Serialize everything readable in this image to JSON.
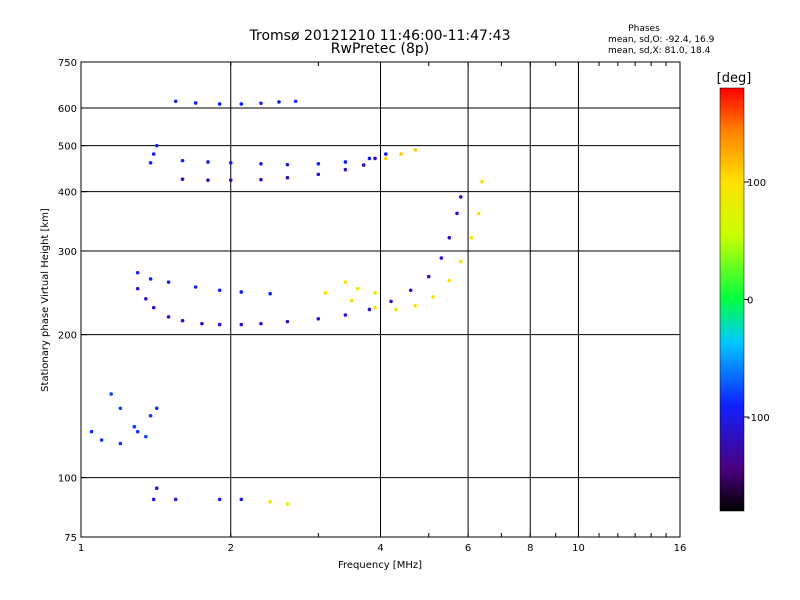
{
  "chart_data": {
    "type": "scatter",
    "title": "Tromsø 20121210 11:46:00-11:47:43",
    "subtitle": "RwPretec (8p)",
    "xlabel": "Frequency [MHz]",
    "ylabel": "Stationary phase Virtual Height [km]",
    "x_scale": "log",
    "y_scale": "log",
    "xlim": [
      1,
      16
    ],
    "ylim": [
      75,
      750
    ],
    "x_ticks": [
      1,
      2,
      4,
      6,
      8,
      10,
      16
    ],
    "y_ticks": [
      75,
      100,
      200,
      300,
      400,
      500,
      600,
      750
    ],
    "grid": true,
    "phases_box": {
      "title": "Phases",
      "line_o": "mean, sd,O: -92.4, 16.9",
      "line_x": "mean, sd,X:  81.0, 18.4"
    },
    "colorbar": {
      "unit": "[deg]",
      "range": [
        -180,
        180
      ],
      "ticks": [
        100,
        0,
        -100
      ]
    },
    "traces": [
      {
        "name": "",
        "phase": -110,
        "points": [
          [
            1.3,
            250
          ],
          [
            1.35,
            238
          ],
          [
            1.4,
            228
          ],
          [
            1.5,
            218
          ],
          [
            1.6,
            214
          ],
          [
            1.75,
            211
          ],
          [
            1.9,
            210
          ],
          [
            2.1,
            210
          ],
          [
            2.3,
            211
          ],
          [
            2.6,
            213
          ],
          [
            3.0,
            216
          ],
          [
            3.4,
            220
          ],
          [
            3.8,
            226
          ],
          [
            4.2,
            235
          ],
          [
            4.6,
            248
          ],
          [
            5.0,
            265
          ],
          [
            5.3,
            290
          ],
          [
            5.5,
            320
          ],
          [
            5.7,
            360
          ],
          [
            5.8,
            390
          ]
        ]
      },
      {
        "name": "",
        "phase": -95,
        "points": [
          [
            1.3,
            270
          ],
          [
            1.38,
            262
          ],
          [
            1.5,
            258
          ],
          [
            1.7,
            252
          ],
          [
            1.9,
            248
          ],
          [
            2.1,
            246
          ],
          [
            2.4,
            244
          ]
        ]
      },
      {
        "name": "",
        "phase": -95,
        "points": [
          [
            1.6,
            465
          ],
          [
            1.8,
            462
          ],
          [
            2.0,
            460
          ],
          [
            2.3,
            458
          ],
          [
            2.6,
            456
          ],
          [
            3.0,
            458
          ],
          [
            3.4,
            462
          ],
          [
            3.8,
            470
          ],
          [
            4.1,
            480
          ]
        ]
      },
      {
        "name": "",
        "phase": -120,
        "points": [
          [
            1.6,
            425
          ],
          [
            1.8,
            423
          ],
          [
            2.0,
            423
          ],
          [
            2.3,
            424
          ],
          [
            2.6,
            428
          ],
          [
            3.0,
            435
          ],
          [
            3.4,
            445
          ],
          [
            3.7,
            455
          ],
          [
            3.9,
            470
          ]
        ]
      },
      {
        "name": "",
        "phase": -90,
        "points": [
          [
            1.55,
            620
          ],
          [
            1.7,
            615
          ],
          [
            1.9,
            612
          ],
          [
            2.1,
            612
          ],
          [
            2.3,
            614
          ],
          [
            2.5,
            618
          ],
          [
            2.7,
            620
          ]
        ]
      },
      {
        "name": "",
        "phase": -85,
        "points": [
          [
            1.05,
            125
          ],
          [
            1.1,
            120
          ],
          [
            1.2,
            118
          ],
          [
            1.3,
            125
          ],
          [
            1.38,
            135
          ],
          [
            1.42,
            140
          ]
        ]
      },
      {
        "name": "",
        "phase": -80,
        "points": [
          [
            1.15,
            150
          ],
          [
            1.2,
            140
          ],
          [
            1.28,
            128
          ],
          [
            1.35,
            122
          ]
        ]
      },
      {
        "name": "",
        "phase": -90,
        "points": [
          [
            1.38,
            460
          ],
          [
            1.4,
            480
          ],
          [
            1.42,
            500
          ]
        ]
      },
      {
        "name": "",
        "phase": 100,
        "points": [
          [
            3.1,
            245
          ],
          [
            3.5,
            236
          ],
          [
            3.9,
            228
          ],
          [
            4.3,
            226
          ],
          [
            4.7,
            230
          ],
          [
            5.1,
            240
          ],
          [
            5.5,
            260
          ],
          [
            5.8,
            285
          ],
          [
            6.1,
            320
          ],
          [
            6.3,
            360
          ],
          [
            6.4,
            420
          ]
        ]
      },
      {
        "name": "",
        "phase": 95,
        "points": [
          [
            3.4,
            258
          ],
          [
            3.6,
            250
          ],
          [
            3.9,
            245
          ]
        ]
      },
      {
        "name": "",
        "phase": 110,
        "points": [
          [
            4.1,
            470
          ],
          [
            4.4,
            480
          ],
          [
            4.7,
            490
          ]
        ]
      },
      {
        "name": "",
        "phase": -100,
        "points": [
          [
            1.55,
            90
          ],
          [
            1.9,
            90
          ],
          [
            2.1,
            90
          ]
        ]
      },
      {
        "name": "",
        "phase": 85,
        "points": [
          [
            2.4,
            89
          ],
          [
            2.6,
            88
          ]
        ]
      },
      {
        "name": "",
        "phase": -100,
        "points": [
          [
            1.4,
            90
          ],
          [
            1.42,
            95
          ]
        ]
      }
    ]
  }
}
